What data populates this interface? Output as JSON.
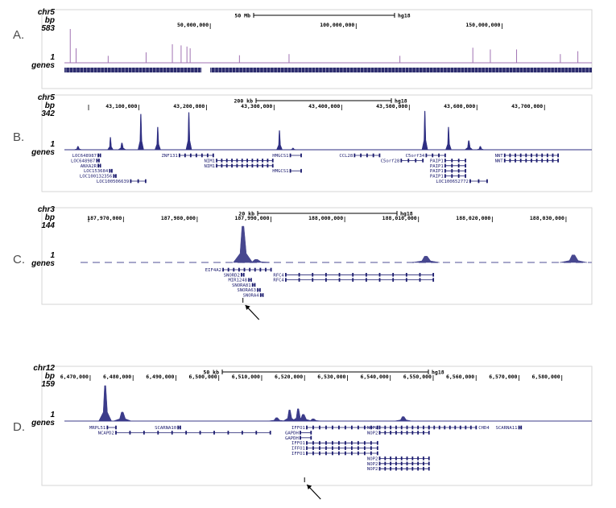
{
  "chart_data": [
    {
      "type": "area",
      "panel_label": "A.",
      "chrom": "chr5",
      "unit": "bp",
      "ymax_label": "583",
      "ymin_label": "1",
      "track_label": "genes",
      "scale_label": "50 Mb",
      "assembly": "hg18",
      "ticks": [
        "50,000,000",
        "100,000,000",
        "150,000,000"
      ],
      "x_start": 0,
      "x_end": 180800000,
      "tick_values": [
        50000000,
        100000000,
        150000000
      ],
      "peaks": [
        [
          2000000,
          583
        ],
        [
          4000000,
          250
        ],
        [
          15000000,
          120
        ],
        [
          28000000,
          180
        ],
        [
          37000000,
          320
        ],
        [
          40000000,
          300
        ],
        [
          42000000,
          280
        ],
        [
          43100000,
          250
        ],
        [
          60000000,
          130
        ],
        [
          77000000,
          150
        ],
        [
          115000000,
          120
        ],
        [
          140000000,
          260
        ],
        [
          146000000,
          230
        ],
        [
          155000000,
          230
        ],
        [
          170000000,
          150
        ],
        [
          176000000,
          200
        ]
      ],
      "color": "#a173b3",
      "dense_genes": true,
      "gap": [
        47000000,
        50000000
      ],
      "genes": []
    },
    {
      "type": "area",
      "panel_label": "B.",
      "chrom": "chr5",
      "unit": "bp",
      "ymax_label": "342",
      "ymin_label": "1",
      "track_label": "genes",
      "scale_label": "200 kb",
      "assembly": "hg18",
      "ticks": [
        "43,100,000",
        "43,200,000",
        "43,300,000",
        "43,400,000",
        "43,500,000",
        "43,600,000",
        "43,700,000"
      ],
      "x_start": 42990000,
      "x_end": 43770000,
      "tick_values": [
        43100000,
        43200000,
        43300000,
        43400000,
        43500000,
        43600000,
        43700000
      ],
      "peaks": [
        [
          43010000,
          30
        ],
        [
          43058000,
          110
        ],
        [
          43075000,
          60
        ],
        [
          43103000,
          315
        ],
        [
          43128000,
          200
        ],
        [
          43174000,
          330
        ],
        [
          43308000,
          170
        ],
        [
          43328000,
          15
        ],
        [
          43523000,
          342
        ],
        [
          43558000,
          200
        ],
        [
          43588000,
          80
        ],
        [
          43605000,
          30
        ]
      ],
      "color": "#2e2e82",
      "dense_genes": false,
      "genes": [
        {
          "name": "LOC648987",
          "start": 43040000,
          "end": 43043000,
          "row": 0,
          "label_side": "left"
        },
        {
          "name": "LOC648987",
          "start": 43038000,
          "end": 43041000,
          "row": 1,
          "label_side": "left"
        },
        {
          "name": "ANXA2R",
          "start": 43040000,
          "end": 43043000,
          "row": 2,
          "label_side": "left"
        },
        {
          "name": "LOC153684",
          "start": 43057000,
          "end": 43060000,
          "row": 3,
          "label_side": "left"
        },
        {
          "name": "LOC100132356",
          "start": 43063000,
          "end": 43066000,
          "row": 4,
          "label_side": "left"
        },
        {
          "name": "LOC100506639",
          "start": 43088000,
          "end": 43110000,
          "row": 5,
          "label_side": "left"
        },
        {
          "name": "ZNF131",
          "start": 43160000,
          "end": 43210000,
          "row": 0,
          "label_side": "left"
        },
        {
          "name": "NIM1",
          "start": 43215000,
          "end": 43298000,
          "row": 1,
          "label_side": "left"
        },
        {
          "name": "NIM1",
          "start": 43215000,
          "end": 43298000,
          "row": 2,
          "label_side": "left"
        },
        {
          "name": "HMGCS1",
          "start": 43324000,
          "end": 43340000,
          "row": 0,
          "label_side": "left"
        },
        {
          "name": "HMGCS1",
          "start": 43324000,
          "end": 43340000,
          "row": 3,
          "label_side": "left"
        },
        {
          "name": "CCL28",
          "start": 43419000,
          "end": 43456000,
          "row": 0,
          "label_side": "left"
        },
        {
          "name": "C5orf28",
          "start": 43488000,
          "end": 43520000,
          "row": 1,
          "label_side": "left"
        },
        {
          "name": "C5orf34",
          "start": 43525000,
          "end": 43553000,
          "row": 0,
          "label_side": "left"
        },
        {
          "name": "PAIP1",
          "start": 43553000,
          "end": 43583000,
          "row": 1,
          "label_side": "left"
        },
        {
          "name": "PAIP1",
          "start": 43553000,
          "end": 43583000,
          "row": 2,
          "label_side": "left"
        },
        {
          "name": "PAIP1",
          "start": 43553000,
          "end": 43583000,
          "row": 3,
          "label_side": "left"
        },
        {
          "name": "PAIP1",
          "start": 43553000,
          "end": 43583000,
          "row": 4,
          "label_side": "left"
        },
        {
          "name": "LOC100652772",
          "start": 43590000,
          "end": 43615000,
          "row": 5,
          "label_side": "left"
        },
        {
          "name": "NNT",
          "start": 43641000,
          "end": 43720000,
          "row": 0,
          "label_side": "left"
        },
        {
          "name": "NNT",
          "start": 43641000,
          "end": 43720000,
          "row": 1,
          "label_side": "left"
        }
      ]
    },
    {
      "type": "area",
      "panel_label": "C.",
      "chrom": "chr3",
      "unit": "bp",
      "ymax_label": "144",
      "ymin_label": "1",
      "track_label": "genes",
      "scale_label": "20 kb",
      "assembly": "hg18",
      "ticks": [
        "187,970,000",
        "187,980,000",
        "187,990,000",
        "188,000,000",
        "188,010,000",
        "188,020,000",
        "188,030,000"
      ],
      "x_start": 187962000,
      "x_end": 188033500,
      "tick_values": [
        187970000,
        187980000,
        187990000,
        188000000,
        188010000,
        188020000,
        188030000
      ],
      "peaks": [
        [
          187986200,
          144
        ],
        [
          187988000,
          12
        ],
        [
          188011000,
          25
        ],
        [
          188031000,
          30
        ]
      ],
      "color": "#47478f",
      "dense_genes": false,
      "baseline_dashes": true,
      "genes": [
        {
          "name": "EIF4A2",
          "start": 187983500,
          "end": 187990000,
          "row": 0,
          "label_side": "left"
        },
        {
          "name": "SNORD2",
          "start": 187986000,
          "end": 187986300,
          "row": 1,
          "label_side": "left"
        },
        {
          "name": "MIR1248",
          "start": 187987000,
          "end": 187987300,
          "row": 2,
          "label_side": "left"
        },
        {
          "name": "SNORA81",
          "start": 187987500,
          "end": 187987800,
          "row": 3,
          "label_side": "left"
        },
        {
          "name": "SNORA63",
          "start": 187988200,
          "end": 187988500,
          "row": 4,
          "label_side": "left"
        },
        {
          "name": "SNORA4",
          "start": 187988600,
          "end": 187988900,
          "row": 5,
          "label_side": "left"
        },
        {
          "name": "RFC4",
          "start": 187992000,
          "end": 188012000,
          "row": 1,
          "label_side": "left"
        },
        {
          "name": "RFC4",
          "start": 187992000,
          "end": 188012000,
          "row": 2,
          "label_side": "left"
        }
      ],
      "arrow_at": 187986200
    },
    {
      "type": "area",
      "panel_label": "D.",
      "chrom": "chr12",
      "unit": "bp",
      "ymax_label": "159",
      "ymin_label": "1",
      "track_label": "genes",
      "scale_label": "50 kb",
      "assembly": "hg18",
      "ticks": [
        "6,470,000",
        "6,480,000",
        "6,490,000",
        "6,500,000",
        "6,510,000",
        "6,520,000",
        "6,530,000",
        "6,540,000",
        "6,550,000",
        "6,560,000",
        "6,570,000",
        "6,580,000"
      ],
      "x_start": 6464000,
      "x_end": 6587000,
      "tick_values": [
        6470000,
        6480000,
        6490000,
        6500000,
        6510000,
        6520000,
        6530000,
        6540000,
        6550000,
        6560000,
        6570000,
        6580000
      ],
      "peaks": [
        [
          6473500,
          159
        ],
        [
          6477500,
          40
        ],
        [
          6513500,
          15
        ],
        [
          6516500,
          50
        ],
        [
          6518500,
          55
        ],
        [
          6519700,
          30
        ],
        [
          6522000,
          10
        ],
        [
          6543000,
          20
        ]
      ],
      "color": "#3b3b8a",
      "dense_genes": false,
      "genes": [
        {
          "name": "MRPL51",
          "start": 6474000,
          "end": 6476000,
          "row": 0,
          "label_side": "left"
        },
        {
          "name": "NCAPD2",
          "start": 6476000,
          "end": 6512000,
          "row": 1,
          "label_side": "left"
        },
        {
          "name": "SCARNA10",
          "start": 6490500,
          "end": 6491000,
          "row": 0,
          "label_side": "left"
        },
        {
          "name": "GAPDH",
          "start": 6519000,
          "end": 6521500,
          "row": 1,
          "label_side": "left"
        },
        {
          "name": "GAPDH",
          "start": 6519000,
          "end": 6521500,
          "row": 2,
          "label_side": "left"
        },
        {
          "name": "IFFO1",
          "start": 6520500,
          "end": 6537000,
          "row": 0,
          "label_side": "left"
        },
        {
          "name": "IFFO1",
          "start": 6520500,
          "end": 6537000,
          "row": 3,
          "label_side": "left"
        },
        {
          "name": "IFFO1",
          "start": 6520500,
          "end": 6537000,
          "row": 4,
          "label_side": "left"
        },
        {
          "name": "IFFO1",
          "start": 6520500,
          "end": 6537000,
          "row": 5,
          "label_side": "left"
        },
        {
          "name": "NOP2",
          "start": 6537500,
          "end": 6549000,
          "row": 0,
          "label_side": "left"
        },
        {
          "name": "NOP2",
          "start": 6537500,
          "end": 6549000,
          "row": 1,
          "label_side": "left"
        },
        {
          "name": "NOP2",
          "start": 6537500,
          "end": 6549000,
          "row": 6,
          "label_side": "left"
        },
        {
          "name": "NOP2",
          "start": 6537500,
          "end": 6549000,
          "row": 7,
          "label_side": "left"
        },
        {
          "name": "NOP2",
          "start": 6537500,
          "end": 6549000,
          "row": 8,
          "label_side": "left"
        },
        {
          "name": "CHD4",
          "start": 6549000,
          "end": 6560000,
          "row": 0,
          "label_side": "right"
        },
        {
          "name": "SCARNA11",
          "start": 6570000,
          "end": 6570500,
          "row": 0,
          "label_side": "left"
        }
      ],
      "arrow_at": 6520000
    }
  ]
}
